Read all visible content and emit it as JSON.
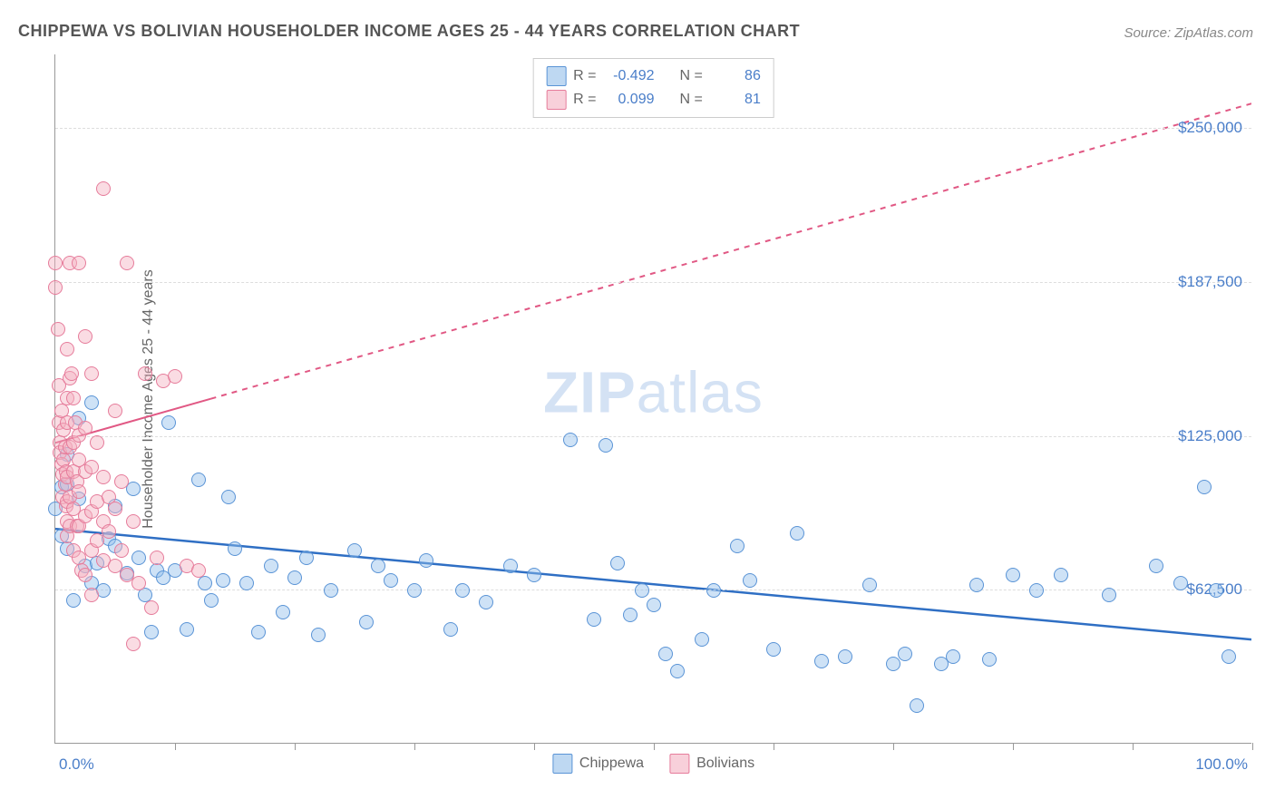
{
  "title": "CHIPPEWA VS BOLIVIAN HOUSEHOLDER INCOME AGES 25 - 44 YEARS CORRELATION CHART",
  "source": "Source: ZipAtlas.com",
  "watermark": {
    "bold": "ZIP",
    "light": "atlas"
  },
  "yaxis_title": "Householder Income Ages 25 - 44 years",
  "chart": {
    "type": "scatter",
    "background_color": "#ffffff",
    "grid_color": "#dddddd",
    "xlim": [
      0,
      100
    ],
    "ylim": [
      0,
      280000
    ],
    "xaxis": {
      "label_left": "0.0%",
      "label_right": "100.0%",
      "tick_positions_pct": [
        10,
        20,
        30,
        40,
        50,
        60,
        70,
        80,
        90,
        100
      ],
      "label_color": "#4a7ec9",
      "label_fontsize": 17
    },
    "yaxis": {
      "ticks": [
        {
          "value": 62500,
          "label": "$62,500"
        },
        {
          "value": 125000,
          "label": "$125,000"
        },
        {
          "value": 187500,
          "label": "$187,500"
        },
        {
          "value": 250000,
          "label": "$250,000"
        }
      ],
      "label_color": "#4a7ec9",
      "label_fontsize": 17
    },
    "series": [
      {
        "name": "Chippewa",
        "color_fill": "rgba(147,190,234,0.45)",
        "color_stroke": "#5a94d6",
        "marker_radius": 8,
        "trend": {
          "y_at_x0": 87000,
          "y_at_x100": 42000,
          "color": "#2f6fc4",
          "width": 2.5,
          "dash": "none"
        },
        "stats": {
          "R": "-0.492",
          "N": "86"
        },
        "points": [
          [
            0,
            95000
          ],
          [
            0.5,
            104000
          ],
          [
            0.5,
            84000
          ],
          [
            1,
            105000
          ],
          [
            1,
            117000
          ],
          [
            1,
            79000
          ],
          [
            1.5,
            58000
          ],
          [
            2,
            99000
          ],
          [
            2,
            132000
          ],
          [
            2.5,
            72000
          ],
          [
            3,
            138000
          ],
          [
            3,
            65000
          ],
          [
            3.5,
            73000
          ],
          [
            4,
            62000
          ],
          [
            4.5,
            83000
          ],
          [
            5,
            96000
          ],
          [
            5,
            80000
          ],
          [
            6,
            69000
          ],
          [
            6.5,
            103000
          ],
          [
            7,
            75000
          ],
          [
            7.5,
            60000
          ],
          [
            8,
            45000
          ],
          [
            8.5,
            70000
          ],
          [
            9,
            67000
          ],
          [
            9.5,
            130000
          ],
          [
            10,
            70000
          ],
          [
            11,
            46000
          ],
          [
            12,
            107000
          ],
          [
            12.5,
            65000
          ],
          [
            13,
            58000
          ],
          [
            14,
            66000
          ],
          [
            14.5,
            100000
          ],
          [
            15,
            79000
          ],
          [
            16,
            65000
          ],
          [
            17,
            45000
          ],
          [
            18,
            72000
          ],
          [
            19,
            53000
          ],
          [
            20,
            67000
          ],
          [
            21,
            75000
          ],
          [
            22,
            44000
          ],
          [
            23,
            62000
          ],
          [
            25,
            78000
          ],
          [
            26,
            49000
          ],
          [
            27,
            72000
          ],
          [
            28,
            66000
          ],
          [
            30,
            62000
          ],
          [
            31,
            74000
          ],
          [
            33,
            46000
          ],
          [
            34,
            62000
          ],
          [
            36,
            57000
          ],
          [
            38,
            72000
          ],
          [
            40,
            68000
          ],
          [
            43,
            123000
          ],
          [
            45,
            50000
          ],
          [
            46,
            121000
          ],
          [
            47,
            73000
          ],
          [
            48,
            52000
          ],
          [
            49,
            62000
          ],
          [
            50,
            56000
          ],
          [
            51,
            36000
          ],
          [
            52,
            29000
          ],
          [
            54,
            42000
          ],
          [
            55,
            62000
          ],
          [
            57,
            80000
          ],
          [
            58,
            66000
          ],
          [
            60,
            38000
          ],
          [
            62,
            85000
          ],
          [
            64,
            33000
          ],
          [
            66,
            35000
          ],
          [
            68,
            64000
          ],
          [
            70,
            32000
          ],
          [
            71,
            36000
          ],
          [
            72,
            15000
          ],
          [
            74,
            32000
          ],
          [
            75,
            35000
          ],
          [
            77,
            64000
          ],
          [
            78,
            34000
          ],
          [
            80,
            68000
          ],
          [
            82,
            62000
          ],
          [
            84,
            68000
          ],
          [
            88,
            60000
          ],
          [
            92,
            72000
          ],
          [
            94,
            65000
          ],
          [
            96,
            104000
          ],
          [
            97,
            62000
          ],
          [
            98,
            35000
          ]
        ]
      },
      {
        "name": "Bolivians",
        "color_fill": "rgba(244,177,194,0.45)",
        "color_stroke": "#e67c9b",
        "marker_radius": 8,
        "trend": {
          "y_at_x0": 122000,
          "y_at_x100": 260000,
          "color": "#e15884",
          "width": 2,
          "dash": "6,6",
          "solid_until_x": 13
        },
        "stats": {
          "R": "0.099",
          "N": "81"
        },
        "points": [
          [
            0,
            195000
          ],
          [
            0,
            185000
          ],
          [
            0.2,
            168000
          ],
          [
            0.3,
            145000
          ],
          [
            0.3,
            130000
          ],
          [
            0.4,
            122000
          ],
          [
            0.4,
            118000
          ],
          [
            0.5,
            135000
          ],
          [
            0.5,
            113000
          ],
          [
            0.6,
            109000
          ],
          [
            0.6,
            100000
          ],
          [
            0.7,
            127000
          ],
          [
            0.7,
            115000
          ],
          [
            0.8,
            120000
          ],
          [
            0.8,
            105000
          ],
          [
            0.9,
            96000
          ],
          [
            0.9,
            110000
          ],
          [
            1,
            160000
          ],
          [
            1,
            140000
          ],
          [
            1,
            130000
          ],
          [
            1,
            108000
          ],
          [
            1,
            98000
          ],
          [
            1,
            90000
          ],
          [
            1,
            84000
          ],
          [
            1.2,
            195000
          ],
          [
            1.2,
            148000
          ],
          [
            1.2,
            120000
          ],
          [
            1.2,
            100000
          ],
          [
            1.2,
            88000
          ],
          [
            1.4,
            150000
          ],
          [
            1.5,
            140000
          ],
          [
            1.5,
            122000
          ],
          [
            1.5,
            110000
          ],
          [
            1.5,
            95000
          ],
          [
            1.5,
            78000
          ],
          [
            1.7,
            130000
          ],
          [
            1.8,
            106000
          ],
          [
            1.8,
            88000
          ],
          [
            2,
            195000
          ],
          [
            2,
            125000
          ],
          [
            2,
            115000
          ],
          [
            2,
            102000
          ],
          [
            2,
            88000
          ],
          [
            2,
            75000
          ],
          [
            2.2,
            70000
          ],
          [
            2.5,
            165000
          ],
          [
            2.5,
            128000
          ],
          [
            2.5,
            110000
          ],
          [
            2.5,
            92000
          ],
          [
            2.5,
            68000
          ],
          [
            3,
            150000
          ],
          [
            3,
            112000
          ],
          [
            3,
            94000
          ],
          [
            3,
            78000
          ],
          [
            3,
            60000
          ],
          [
            3.5,
            122000
          ],
          [
            3.5,
            98000
          ],
          [
            3.5,
            82000
          ],
          [
            4,
            225000
          ],
          [
            4,
            108000
          ],
          [
            4,
            90000
          ],
          [
            4,
            74000
          ],
          [
            4.5,
            100000
          ],
          [
            4.5,
            86000
          ],
          [
            5,
            135000
          ],
          [
            5,
            95000
          ],
          [
            5,
            72000
          ],
          [
            5.5,
            106000
          ],
          [
            5.5,
            78000
          ],
          [
            6,
            195000
          ],
          [
            6,
            68000
          ],
          [
            6.5,
            90000
          ],
          [
            6.5,
            40000
          ],
          [
            7,
            65000
          ],
          [
            7.5,
            150000
          ],
          [
            8,
            55000
          ],
          [
            8.5,
            75000
          ],
          [
            9,
            147000
          ],
          [
            10,
            149000
          ],
          [
            11,
            72000
          ],
          [
            12,
            70000
          ]
        ]
      }
    ]
  },
  "stats_box": {
    "rows": [
      {
        "swatch": "blue",
        "r_label": "R =",
        "r_value": "-0.492",
        "n_label": "N =",
        "n_value": "86"
      },
      {
        "swatch": "pink",
        "r_label": "R =",
        "r_value": "0.099",
        "n_label": "N =",
        "n_value": "81"
      }
    ]
  },
  "legend": {
    "items": [
      {
        "swatch": "blue",
        "label": "Chippewa"
      },
      {
        "swatch": "pink",
        "label": "Bolivians"
      }
    ]
  }
}
